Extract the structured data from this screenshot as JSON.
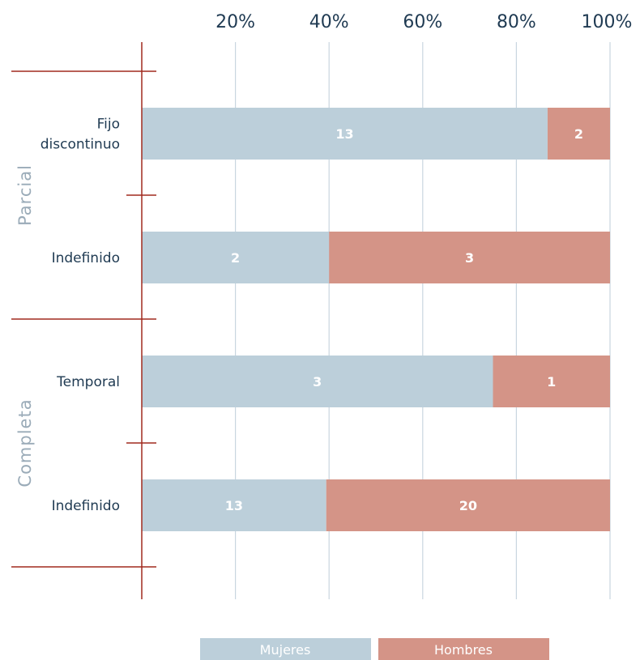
{
  "chart_data": {
    "type": "bar",
    "orientation": "horizontal",
    "stacked": "percent",
    "xlim": [
      0,
      100
    ],
    "x_ticks": [
      "20%",
      "40%",
      "60%",
      "80%",
      "100%"
    ],
    "groups": [
      "Parcial",
      "Completa"
    ],
    "categories": [
      {
        "group": "Parcial",
        "label_lines": [
          "Fijo",
          "discontinuo"
        ]
      },
      {
        "group": "Parcial",
        "label_lines": [
          "Indefinido"
        ]
      },
      {
        "group": "Completa",
        "label_lines": [
          "Temporal"
        ]
      },
      {
        "group": "Completa",
        "label_lines": [
          "Indefinido"
        ]
      }
    ],
    "series": [
      {
        "name": "Mujeres",
        "color": "#bccfda",
        "values": [
          13,
          2,
          3,
          13
        ]
      },
      {
        "name": "Hombres",
        "color": "#d49487",
        "values": [
          2,
          3,
          1,
          20
        ]
      }
    ],
    "grid": true,
    "legend_position": "bottom"
  },
  "colors": {
    "text": "#1f3a52",
    "gridline": "#c9d6e0",
    "axis_line": "#a02a1e",
    "group_label": "#9aabb8"
  }
}
